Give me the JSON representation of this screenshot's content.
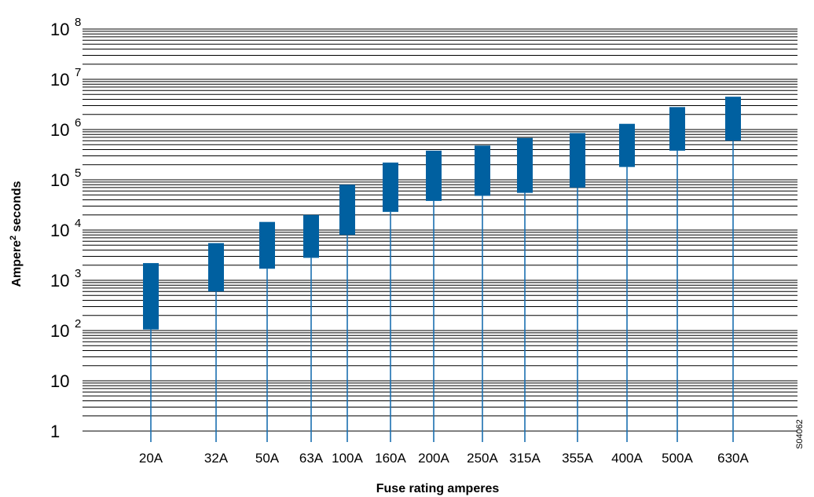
{
  "chart_data": {
    "type": "bar",
    "subtype": "floating-range-log",
    "categories": [
      "20A",
      "32A",
      "50A",
      "63A",
      "100A",
      "160A",
      "200A",
      "250A",
      "315A",
      "355A",
      "400A",
      "500A",
      "630A"
    ],
    "ranges": [
      [
        105,
        2200
      ],
      [
        600,
        5500
      ],
      [
        1700,
        14500
      ],
      [
        2800,
        20000
      ],
      [
        8000,
        80000
      ],
      [
        23000,
        220000
      ],
      [
        38000,
        380000
      ],
      [
        48000,
        480000
      ],
      [
        55000,
        680000
      ],
      [
        70000,
        850000
      ],
      [
        180000,
        1300000
      ],
      [
        380000,
        2800000
      ],
      [
        600000,
        4500000
      ]
    ],
    "xlabel": "Fuse rating amperes",
    "ylabel_main": "Ampere",
    "ylabel_sup": "2",
    "ylabel_rest": " seconds",
    "yscale": "log",
    "ylim": [
      1,
      100000000
    ],
    "yticks": [
      {
        "base": "1",
        "exp": ""
      },
      {
        "base": "10",
        "exp": ""
      },
      {
        "base": "10",
        "exp": "2"
      },
      {
        "base": "10",
        "exp": "3"
      },
      {
        "base": "10",
        "exp": "4"
      },
      {
        "base": "10",
        "exp": "5"
      },
      {
        "base": "10",
        "exp": "6"
      },
      {
        "base": "10",
        "exp": "7"
      },
      {
        "base": "10",
        "exp": "8"
      }
    ],
    "grid": true,
    "bar_color": "#0060a0",
    "stem_color": "#1a6fb0",
    "grid_color": "#000000",
    "reference_code": "S04062"
  }
}
